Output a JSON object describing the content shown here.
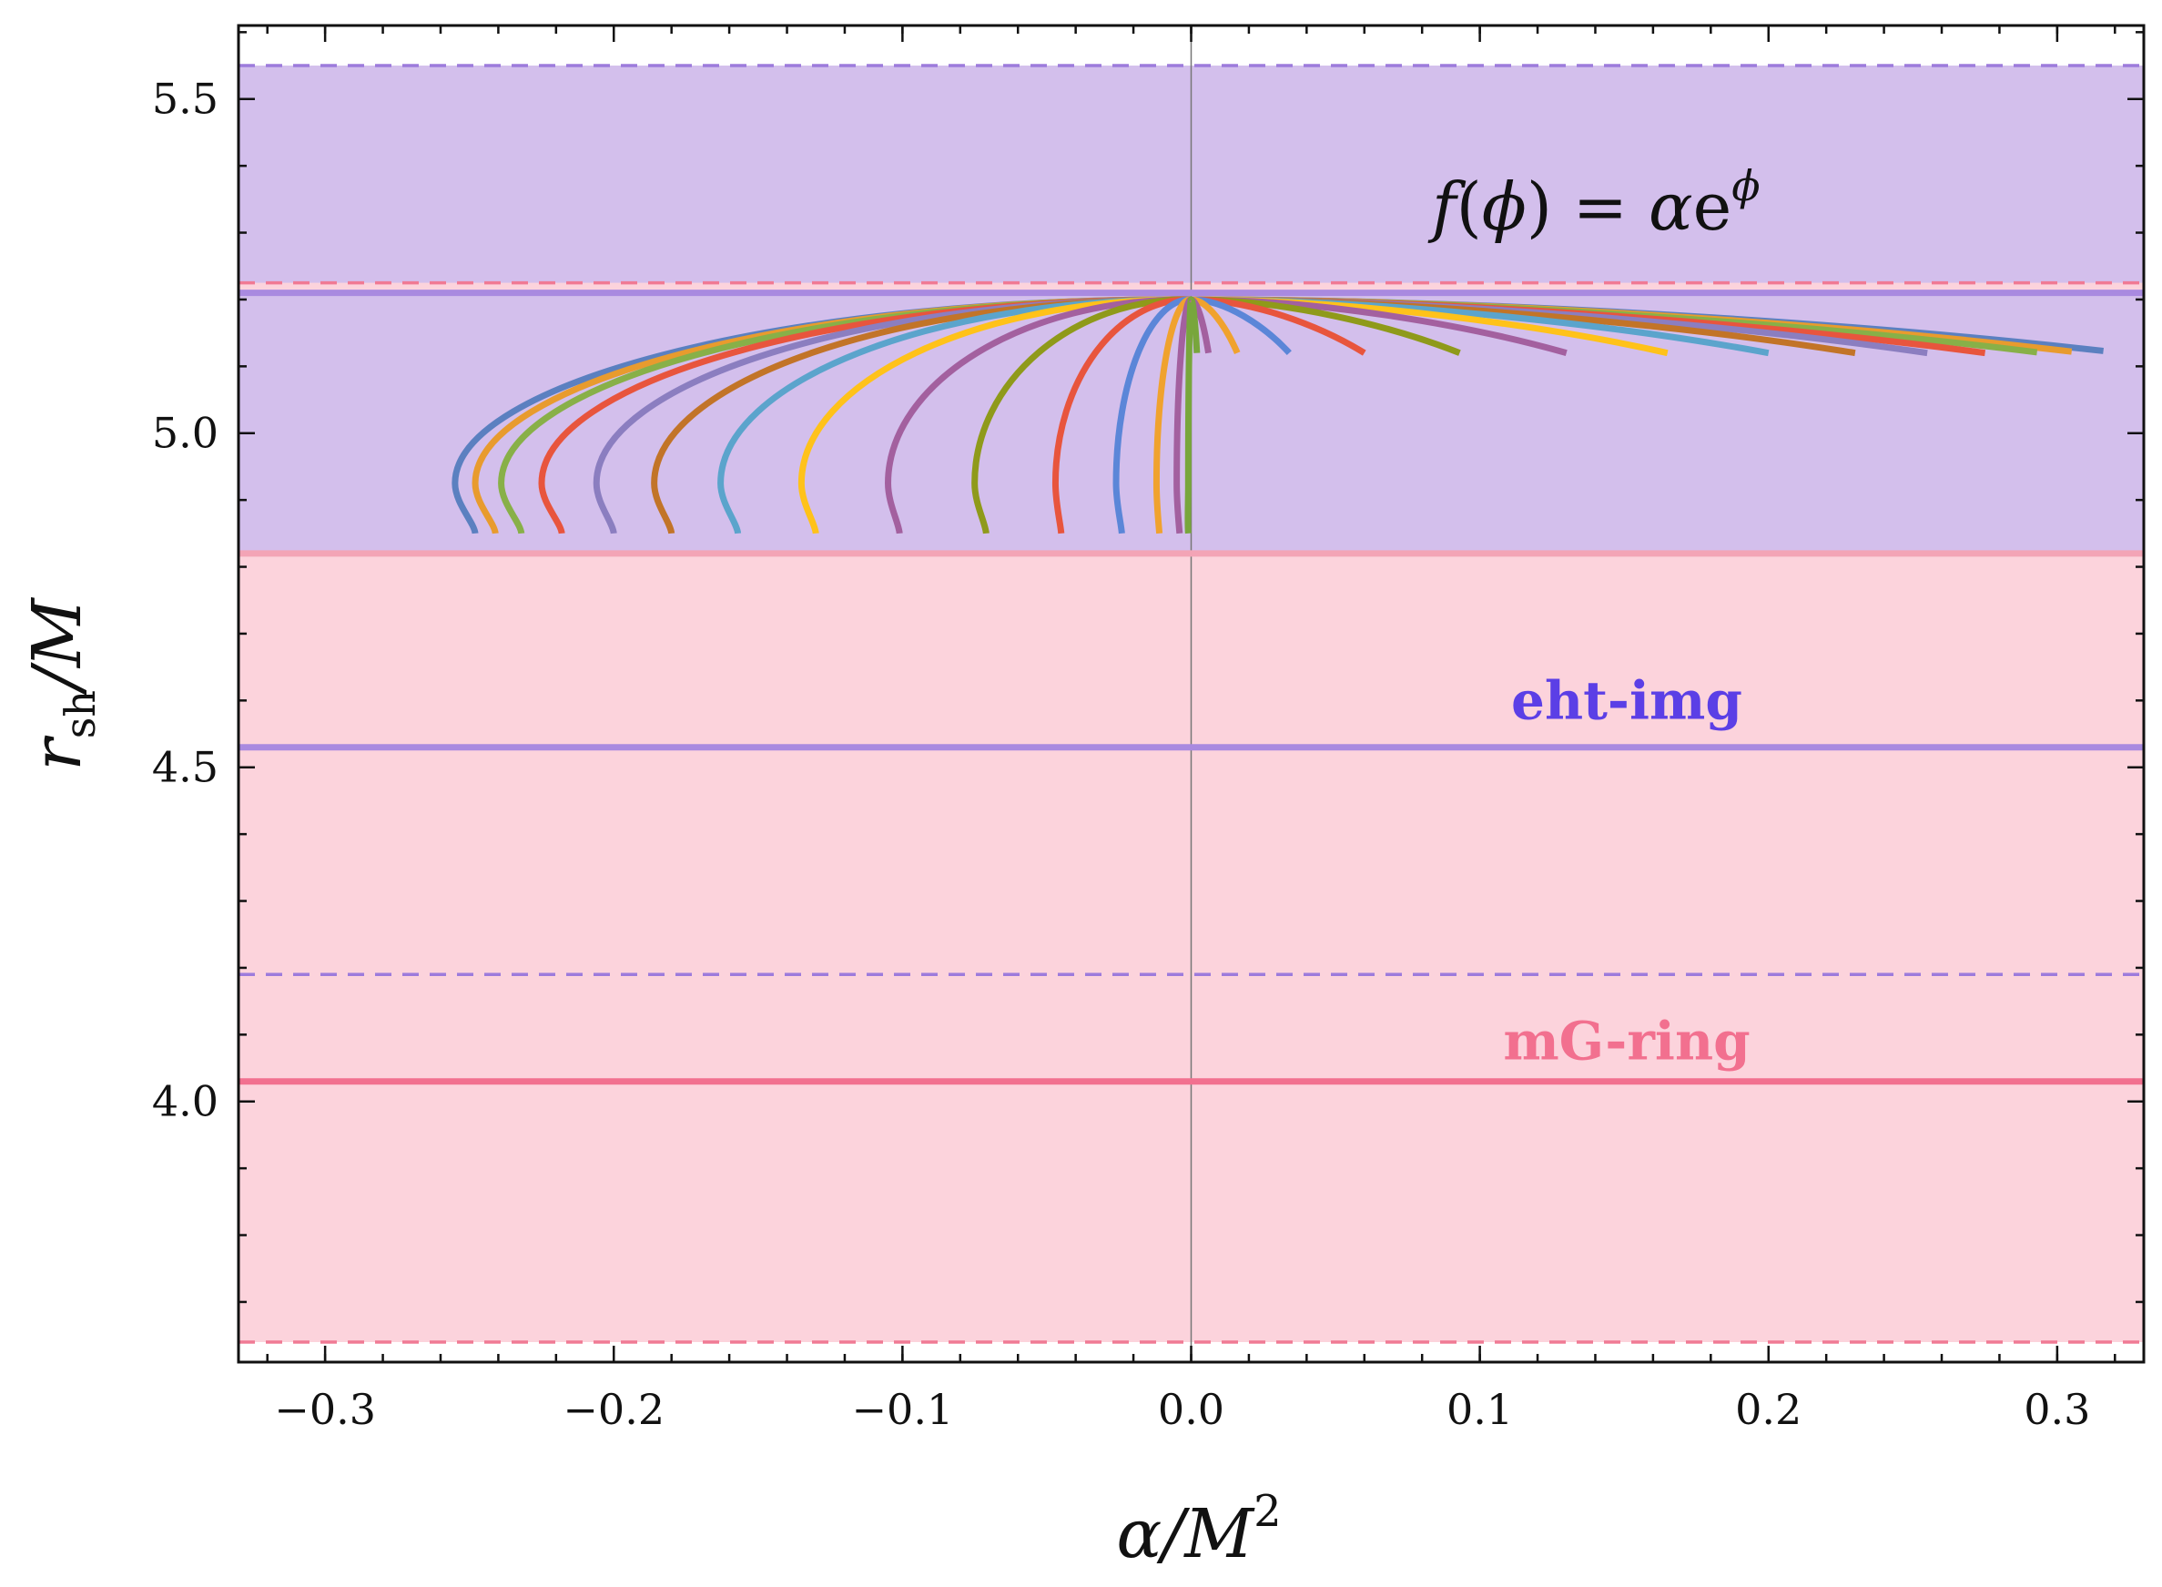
{
  "chart_data": {
    "type": "line",
    "annotation": {
      "func": "f",
      "arg": "ϕ",
      "rhs": "α",
      "rhs_base": "e",
      "rhs_exp": "ϕ"
    },
    "xlabel": {
      "main": "α",
      "rest": "/M",
      "sup": "2"
    },
    "ylabel": {
      "main": "r",
      "sub": "sh",
      "rest": "/M"
    },
    "xlim": [
      -0.33,
      0.33
    ],
    "ylim": [
      3.61,
      5.61
    ],
    "xticks": [
      -0.3,
      -0.2,
      -0.1,
      0.0,
      0.1,
      0.2,
      0.3
    ],
    "xtick_labels": [
      "−0.3",
      "−0.2",
      "−0.1",
      "0.0",
      "0.1",
      "0.2",
      "0.3"
    ],
    "yticks": [
      4.0,
      4.5,
      5.0,
      5.5
    ],
    "ytick_labels": [
      "4.0",
      "4.5",
      "5.0",
      "5.5"
    ],
    "minor_x_step": 0.02,
    "minor_y_step": 0.1,
    "bands": [
      {
        "name": "eht-img",
        "color": "#5b3fe6",
        "fill": "#d3bfec",
        "solid": [
          4.53,
          5.21
        ],
        "dashed": [
          4.19,
          5.55
        ],
        "label_y": 4.6
      },
      {
        "name": "mG-ring",
        "color": "#f2708f",
        "fill": "#fcd3dc",
        "solid": [
          4.03,
          4.82
        ],
        "dashed": [
          3.64,
          5.225
        ],
        "label_y": 4.09
      }
    ],
    "vertical_line_x": 0.0,
    "curve_colors": [
      "#5b80c0",
      "#e89b2e",
      "#88b048",
      "#e8553d",
      "#8b7ec0",
      "#c27428",
      "#5ba4cc",
      "#ffc21a",
      "#a3609f",
      "#8f9a1a",
      "#e8553d",
      "#5b86d8",
      "#f0a22e",
      "#a3609f",
      "#78a63c"
    ],
    "left_curves": [
      {
        "alpha_min": -0.255,
        "alpha_end": -0.248
      },
      {
        "alpha_min": -0.248,
        "alpha_end": -0.241
      },
      {
        "alpha_min": -0.239,
        "alpha_end": -0.232
      },
      {
        "alpha_min": -0.225,
        "alpha_end": -0.218
      },
      {
        "alpha_min": -0.206,
        "alpha_end": -0.2
      },
      {
        "alpha_min": -0.186,
        "alpha_end": -0.18
      },
      {
        "alpha_min": -0.163,
        "alpha_end": -0.157
      },
      {
        "alpha_min": -0.135,
        "alpha_end": -0.13
      },
      {
        "alpha_min": -0.105,
        "alpha_end": -0.101
      },
      {
        "alpha_min": -0.075,
        "alpha_end": -0.071
      },
      {
        "alpha_min": -0.047,
        "alpha_end": -0.045
      },
      {
        "alpha_min": -0.026,
        "alpha_end": -0.024
      },
      {
        "alpha_min": -0.012,
        "alpha_end": -0.011
      },
      {
        "alpha_min": -0.005,
        "alpha_end": -0.004
      },
      {
        "alpha_min": -0.001,
        "alpha_end": -0.001
      }
    ],
    "left_curve_endpoint_y": 4.85,
    "left_curve_turn_y": 4.925,
    "apex": [
      0.0,
      5.2
    ],
    "right_curves": [
      {
        "alpha_end": 0.316,
        "y_end": 5.123
      },
      {
        "alpha_end": 0.305,
        "y_end": 5.122
      },
      {
        "alpha_end": 0.293,
        "y_end": 5.121
      },
      {
        "alpha_end": 0.275,
        "y_end": 5.12
      },
      {
        "alpha_end": 0.255,
        "y_end": 5.12
      },
      {
        "alpha_end": 0.23,
        "y_end": 5.12
      },
      {
        "alpha_end": 0.2,
        "y_end": 5.12
      },
      {
        "alpha_end": 0.165,
        "y_end": 5.12
      },
      {
        "alpha_end": 0.13,
        "y_end": 5.12
      },
      {
        "alpha_end": 0.093,
        "y_end": 5.12
      },
      {
        "alpha_end": 0.06,
        "y_end": 5.12
      },
      {
        "alpha_end": 0.034,
        "y_end": 5.12
      },
      {
        "alpha_end": 0.016,
        "y_end": 5.12
      },
      {
        "alpha_end": 0.006,
        "y_end": 5.12
      },
      {
        "alpha_end": 0.002,
        "y_end": 5.12
      }
    ]
  }
}
